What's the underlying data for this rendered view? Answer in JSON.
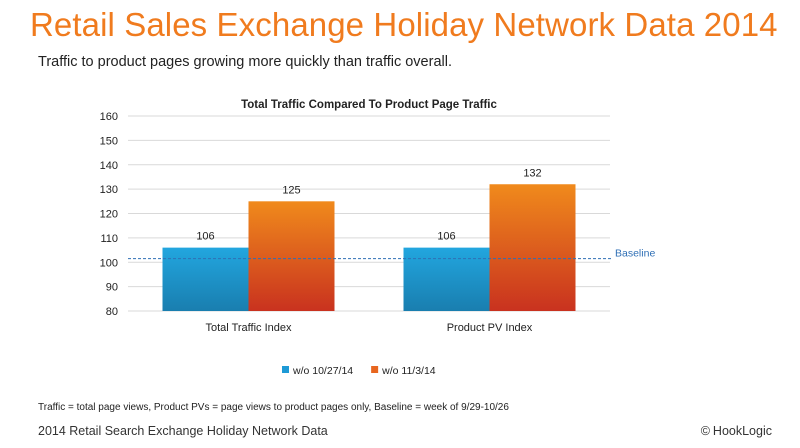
{
  "slide": {
    "title": "Retail Sales Exchange Holiday Network Data 2014",
    "subtitle": "Traffic to product pages growing more quickly than traffic overall."
  },
  "chart_data": {
    "type": "bar",
    "title": "Total Traffic Compared To Product Page Traffic",
    "xlabel": "",
    "ylabel": "",
    "categories": [
      "Total Traffic Index",
      "Product PV Index"
    ],
    "series": [
      {
        "name": "w/o 10/27/14",
        "values": [
          106,
          106
        ],
        "color": "#1e9ad6"
      },
      {
        "name": "w/o 11/3/14",
        "values": [
          125,
          132
        ],
        "color": "#e8661f"
      }
    ],
    "ylim": [
      80,
      160
    ],
    "yticks": [
      80,
      90,
      100,
      110,
      120,
      130,
      140,
      150,
      160
    ],
    "grid": true,
    "baseline": {
      "value": 101.5,
      "label": "Baseline",
      "color": "#2f6fb5"
    },
    "legend_position": "bottom"
  },
  "footnote": "Traffic = total page views, Product PVs = page views to product pages only, Baseline = week of 9/29-10/26",
  "footer": {
    "left": "2014 Retail Search Exchange Holiday Network Data",
    "copyright": "©",
    "right": "HookLogic"
  }
}
